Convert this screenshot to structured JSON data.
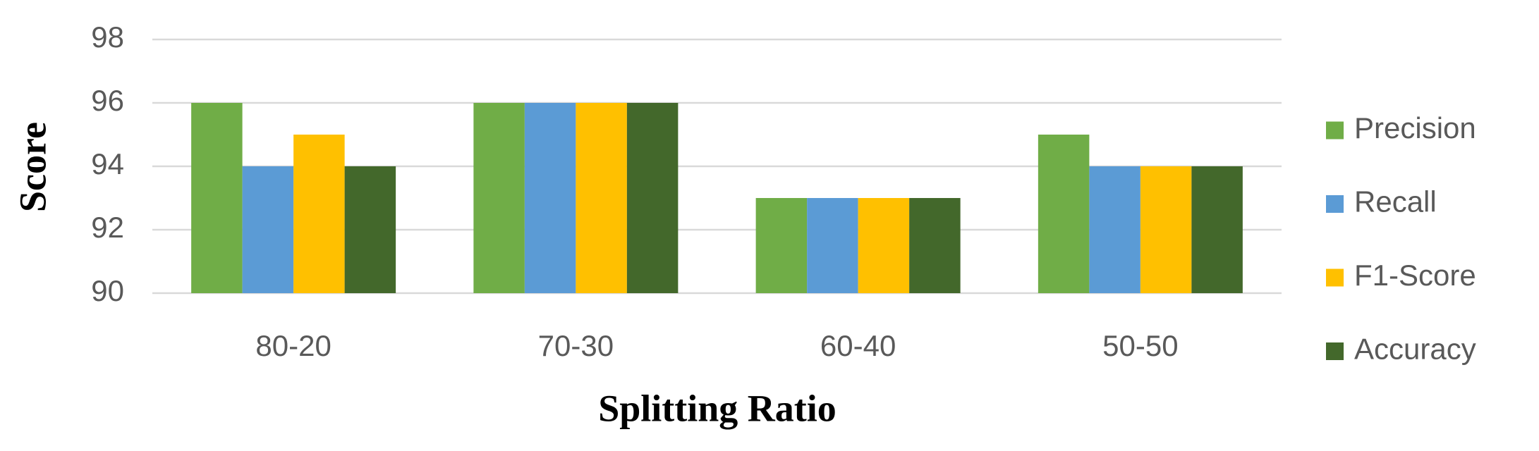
{
  "chart_data": {
    "type": "bar",
    "x_label": "Splitting Ratio",
    "y_label": "Score",
    "categories": [
      "80-20",
      "70-30",
      "60-40",
      "50-50"
    ],
    "series": [
      {
        "name": "Precision",
        "color": "#70ad47",
        "values": [
          96,
          96,
          93,
          95
        ]
      },
      {
        "name": "Recall",
        "color": "#5b9bd5",
        "values": [
          94,
          96,
          93,
          94
        ]
      },
      {
        "name": "F1-Score",
        "color": "#ffc000",
        "values": [
          95,
          96,
          93,
          94
        ]
      },
      {
        "name": "Accuracy",
        "color": "#43682b",
        "values": [
          94,
          96,
          93,
          94
        ]
      }
    ],
    "ylim": [
      90,
      98
    ],
    "yticks": [
      90,
      92,
      94,
      96,
      98
    ],
    "grid": true,
    "legend": "right"
  }
}
